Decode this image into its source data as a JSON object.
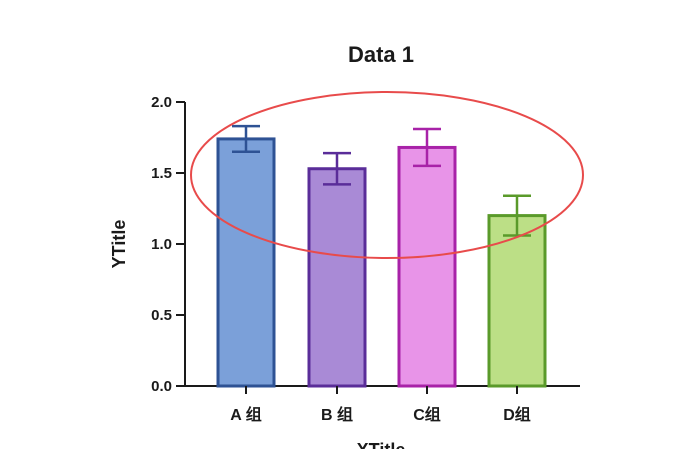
{
  "chart_data": {
    "type": "bar",
    "title": "Data 1",
    "xlabel": "XTitle",
    "ylabel": "YTitle",
    "ylim": [
      0,
      2.0
    ],
    "yticks": [
      "0.0",
      "0.5",
      "1.0",
      "1.5",
      "2.0"
    ],
    "categories": [
      "A 组",
      "B 组",
      "C组",
      "D组"
    ],
    "values": [
      1.74,
      1.53,
      1.68,
      1.2
    ],
    "error": [
      0.09,
      0.11,
      0.13,
      0.14
    ],
    "grid": false,
    "legend": "none"
  },
  "colors": {
    "fills": [
      "#7ba0d9",
      "#a98ad6",
      "#e894e8",
      "#bcdf86"
    ],
    "strokes": [
      "#2e5294",
      "#5a2d99",
      "#a822a8",
      "#5a9a2a"
    ],
    "annotation": "#e84b4b",
    "axis": "#1a1a1a"
  }
}
